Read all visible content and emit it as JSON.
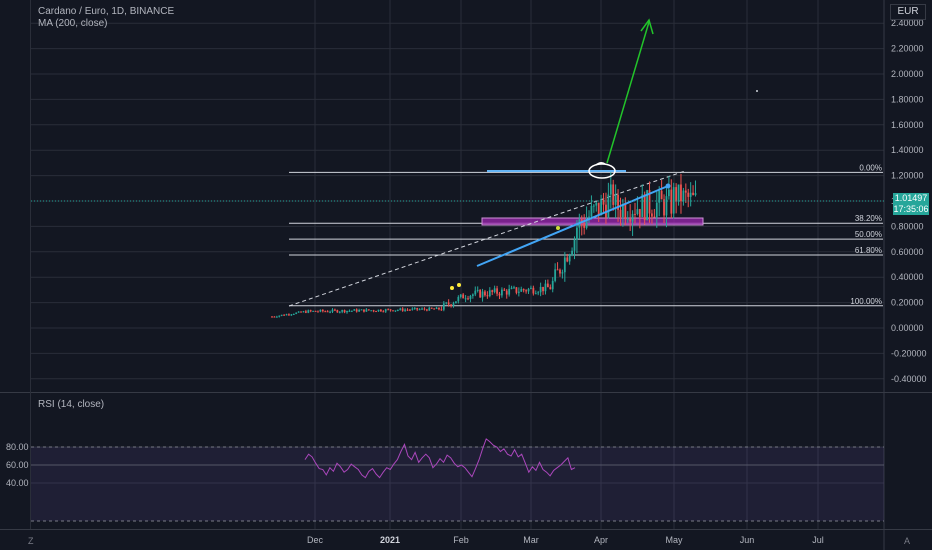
{
  "header": {
    "title": "Cardano / Euro, 1D, BINANCE",
    "indicator": "MA (200, close)",
    "currency": "EUR"
  },
  "price_axis": {
    "ticks": [
      "2.40000",
      "2.20000",
      "2.00000",
      "1.80000",
      "1.60000",
      "1.40000",
      "1.20000",
      "1.00000",
      "0.80000",
      "0.60000",
      "0.40000",
      "0.20000",
      "0.00000",
      "-0.20000",
      "-0.40000"
    ],
    "last_price": "1.01497",
    "countdown": "17:35:06"
  },
  "rsi": {
    "label": "RSI (14, close)",
    "ticks": [
      "80.00",
      "60.00",
      "40.00"
    ],
    "values": [
      66,
      72,
      69,
      62,
      56,
      55,
      49,
      57,
      53,
      62,
      58,
      52,
      55,
      61,
      58,
      55,
      49,
      46,
      53,
      56,
      50,
      46,
      52,
      57,
      55,
      61,
      66,
      75,
      83,
      70,
      66,
      74,
      63,
      68,
      72,
      68,
      57,
      61,
      67,
      63,
      71,
      68,
      62,
      58,
      60,
      57,
      52,
      47,
      56,
      66,
      78,
      89,
      86,
      82,
      80,
      75,
      78,
      72,
      70,
      77,
      69,
      72,
      62,
      52,
      58,
      54,
      63,
      55,
      52,
      48,
      54,
      57,
      60,
      64,
      68,
      55,
      57
    ]
  },
  "fib": [
    {
      "label": "0.00%",
      "value": 1.225
    },
    {
      "label": "38.20%",
      "value": 0.825
    },
    {
      "label": "50.00%",
      "value": 0.7
    },
    {
      "label": "61.80%",
      "value": 0.575
    },
    {
      "label": "100.00%",
      "value": 0.175
    }
  ],
  "time_axis": {
    "labels": [
      "Dec",
      "2021",
      "Feb",
      "Mar",
      "Apr",
      "May",
      "Jun",
      "Jul"
    ]
  },
  "corners": {
    "left": "Z",
    "right": "A"
  },
  "colors": {
    "background": "#131722",
    "up": "#26a69a",
    "down": "#ef5350",
    "trend": "#2196f3",
    "target_arrow": "#22c42a",
    "zone": "#9c27b0",
    "rsi": "#9c27b0"
  }
}
